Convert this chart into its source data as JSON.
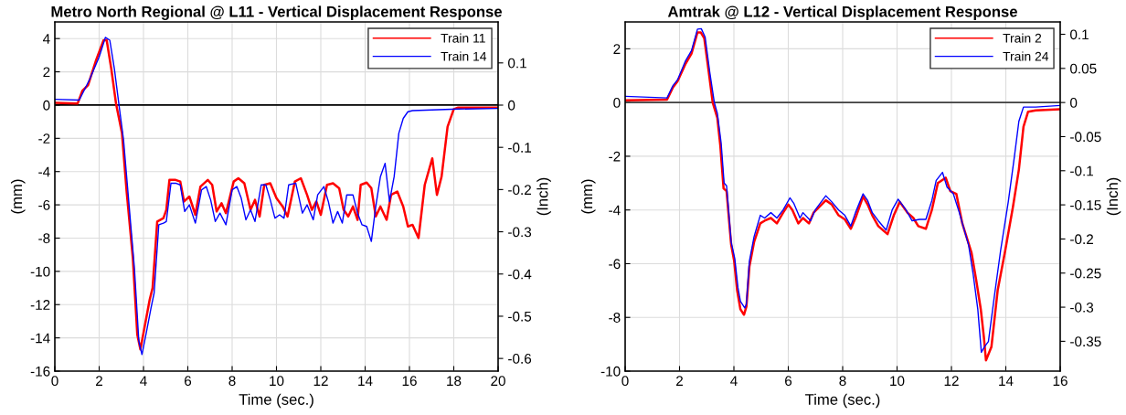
{
  "chart_data": [
    {
      "type": "line",
      "title": "Metro North Regional @ L11 - Vertical Displacement Response",
      "xlabel": "Time (sec.)",
      "ylabel": "(mm)",
      "y2label": "(Inch)",
      "xlim": [
        0,
        20
      ],
      "xticks": [
        0,
        2,
        4,
        6,
        8,
        10,
        12,
        14,
        16,
        18,
        20
      ],
      "ylim": [
        -16,
        5
      ],
      "yticks": [
        -16,
        -14,
        -12,
        -10,
        -8,
        -6,
        -4,
        -2,
        0,
        2,
        4
      ],
      "y2lim": [
        -0.63,
        0.197
      ],
      "y2ticks": [
        -0.6,
        -0.5,
        -0.4,
        -0.3,
        -0.2,
        -0.1,
        0,
        0.1
      ],
      "grid": true,
      "legend": "top right",
      "ref_lines": [
        {
          "axis": "y",
          "value": 0,
          "label": null,
          "color": "#000000"
        }
      ],
      "series": [
        {
          "name": "Train 11",
          "color": "#ff0000",
          "x": [
            0,
            1.03,
            1.24,
            1.5,
            1.86,
            2.2,
            2.34,
            2.55,
            2.76,
            3.03,
            3.24,
            3.52,
            3.72,
            3.86,
            4.07,
            4.28,
            4.41,
            4.62,
            4.9,
            5.03,
            5.17,
            5.45,
            5.66,
            5.83,
            6.07,
            6.34,
            6.57,
            6.9,
            7.1,
            7.3,
            7.52,
            7.72,
            8.07,
            8.28,
            8.55,
            8.83,
            9.03,
            9.24,
            9.45,
            9.72,
            10.0,
            10.28,
            10.5,
            10.83,
            11.1,
            11.38,
            11.6,
            11.8,
            12.0,
            12.28,
            12.55,
            12.83,
            13.03,
            13.24,
            13.45,
            13.66,
            13.8,
            14.07,
            14.28,
            14.48,
            14.69,
            14.97,
            15.17,
            15.45,
            15.72,
            15.93,
            16.14,
            16.41,
            16.69,
            17.03,
            17.24,
            17.45,
            17.72,
            18.0,
            18.2,
            20
          ],
          "values": [
            0.13,
            0.1,
            0.85,
            1.2,
            2.7,
            3.9,
            3.9,
            2.15,
            0.1,
            -1.7,
            -5.2,
            -9.2,
            -13.8,
            -14.7,
            -13.2,
            -11.7,
            -11,
            -7,
            -6.8,
            -6.3,
            -4.5,
            -4.5,
            -4.6,
            -5.8,
            -5.5,
            -6.6,
            -4.9,
            -4.5,
            -4.8,
            -6.4,
            -5.9,
            -6.5,
            -4.6,
            -4.4,
            -4.7,
            -6.3,
            -5.7,
            -6.7,
            -4.8,
            -4.7,
            -5.6,
            -6.1,
            -6.7,
            -4.6,
            -4.4,
            -5.4,
            -6.3,
            -5.8,
            -6.6,
            -4.8,
            -4.7,
            -5,
            -6.3,
            -6.7,
            -6.1,
            -6.9,
            -4.8,
            -4.66,
            -5,
            -6.7,
            -6.1,
            -6.9,
            -5.4,
            -5.2,
            -6.1,
            -7.3,
            -7.2,
            -8.0,
            -4.8,
            -3.2,
            -5.4,
            -4.3,
            -1.3,
            -0.24,
            -0.15,
            -0.15
          ]
        },
        {
          "name": "Train 14",
          "color": "#0000ff",
          "x": [
            0,
            1.1,
            1.31,
            1.59,
            2.0,
            2.28,
            2.48,
            2.69,
            2.9,
            3.1,
            3.31,
            3.59,
            3.79,
            3.93,
            4.14,
            4.34,
            4.48,
            4.69,
            4.9,
            5.03,
            5.24,
            5.45,
            5.66,
            5.86,
            6.07,
            6.34,
            6.62,
            6.83,
            7.03,
            7.24,
            7.45,
            7.72,
            8.0,
            8.21,
            8.41,
            8.62,
            8.83,
            9.03,
            9.31,
            9.52,
            9.72,
            9.93,
            10.14,
            10.34,
            10.55,
            10.87,
            11.17,
            11.38,
            11.66,
            11.86,
            12.14,
            12.34,
            12.55,
            12.76,
            12.97,
            13.17,
            13.45,
            13.66,
            13.86,
            14.07,
            14.28,
            14.48,
            14.69,
            14.9,
            15.1,
            15.31,
            15.52,
            15.72,
            15.93,
            16.14,
            18.2,
            20
          ],
          "values": [
            0.35,
            0.3,
            0.85,
            1.6,
            2.9,
            4.07,
            3.9,
            2.15,
            -0.05,
            -2.1,
            -5.4,
            -9.8,
            -14.2,
            -15.0,
            -13.6,
            -12.2,
            -11.3,
            -7.2,
            -7.1,
            -7.0,
            -4.7,
            -4.7,
            -4.8,
            -6.4,
            -6.0,
            -7.1,
            -5.1,
            -4.9,
            -5.7,
            -7.0,
            -6.5,
            -7.2,
            -5.1,
            -4.9,
            -5.6,
            -6.9,
            -6.3,
            -7.0,
            -4.8,
            -4.8,
            -5.7,
            -6.8,
            -6.6,
            -6.8,
            -4.8,
            -4.7,
            -6.5,
            -6.0,
            -6.9,
            -5.4,
            -4.9,
            -5.8,
            -7.1,
            -6.4,
            -7.1,
            -5.4,
            -5.4,
            -6.5,
            -7.2,
            -7.3,
            -8.2,
            -6.1,
            -4.3,
            -3.5,
            -5.8,
            -4.3,
            -1.7,
            -0.8,
            -0.4,
            -0.33,
            -0.24,
            -0.2
          ]
        }
      ]
    },
    {
      "type": "line",
      "title": "Amtrak @ L12 - Vertical Displacement Response",
      "xlabel": "Time (sec.)",
      "ylabel": "(mm)",
      "y2label": "(Inch)",
      "xlim": [
        0,
        16
      ],
      "xticks": [
        0,
        2,
        4,
        6,
        8,
        10,
        12,
        14,
        16
      ],
      "ylim": [
        -10,
        3
      ],
      "yticks": [
        -10,
        -8,
        -6,
        -4,
        -2,
        0,
        2
      ],
      "y2lim": [
        -0.3937,
        0.1181
      ],
      "y2ticks": [
        -0.35,
        -0.3,
        -0.25,
        -0.2,
        -0.15,
        -0.1,
        -0.05,
        0,
        0.05,
        0.1
      ],
      "grid": true,
      "legend": "top right",
      "ref_lines": [
        {
          "axis": "y",
          "value": 0,
          "label": null,
          "color": "#404040"
        }
      ],
      "series": [
        {
          "name": "Train 2",
          "color": "#ff0000",
          "x": [
            0,
            1.54,
            1.76,
            1.93,
            2.21,
            2.44,
            2.66,
            2.78,
            2.91,
            3.06,
            3.22,
            3.39,
            3.5,
            3.62,
            3.73,
            3.9,
            4.01,
            4.12,
            4.24,
            4.37,
            4.46,
            4.57,
            4.74,
            4.97,
            5.13,
            5.36,
            5.58,
            5.81,
            6.0,
            6.15,
            6.37,
            6.54,
            6.76,
            6.93,
            7.38,
            7.6,
            7.85,
            8.08,
            8.3,
            8.47,
            8.75,
            8.92,
            9.09,
            9.31,
            9.65,
            9.88,
            10.1,
            10.38,
            10.6,
            10.78,
            11.06,
            11.28,
            11.5,
            11.79,
            11.96,
            12.18,
            12.4,
            12.74,
            12.91,
            13.08,
            13.19,
            13.27,
            13.47,
            13.7,
            13.98,
            14.26,
            14.48,
            14.65,
            14.82,
            15.1,
            16
          ],
          "values": [
            0.08,
            0.11,
            0.57,
            0.8,
            1.42,
            1.82,
            2.61,
            2.61,
            2.39,
            1.25,
            0,
            -0.57,
            -1.6,
            -3.2,
            -3.3,
            -5.3,
            -5.9,
            -7.0,
            -7.7,
            -7.9,
            -7.6,
            -6.1,
            -5.2,
            -4.5,
            -4.4,
            -4.3,
            -4.5,
            -4.1,
            -3.8,
            -4.0,
            -4.5,
            -4.3,
            -4.5,
            -4.1,
            -3.64,
            -3.8,
            -4.2,
            -4.35,
            -4.7,
            -4.3,
            -3.5,
            -3.8,
            -4.2,
            -4.6,
            -4.9,
            -4.2,
            -3.7,
            -4.1,
            -4.3,
            -4.6,
            -4.7,
            -4.0,
            -3.0,
            -2.8,
            -3.3,
            -3.4,
            -4.5,
            -5.6,
            -6.6,
            -7.7,
            -8.7,
            -9.6,
            -9.1,
            -7.0,
            -5.5,
            -3.9,
            -2.5,
            -0.9,
            -0.34,
            -0.29,
            -0.25
          ]
        },
        {
          "name": "Train 24",
          "color": "#0000ff",
          "x": [
            0,
            1.54,
            1.76,
            1.93,
            2.21,
            2.44,
            2.66,
            2.8,
            2.94,
            3.11,
            3.28,
            3.39,
            3.53,
            3.64,
            3.73,
            3.9,
            4.03,
            4.15,
            4.24,
            4.4,
            4.46,
            4.57,
            4.74,
            4.97,
            5.13,
            5.36,
            5.58,
            5.81,
            6.06,
            6.2,
            6.43,
            6.54,
            6.82,
            6.99,
            7.38,
            7.6,
            7.85,
            8.08,
            8.3,
            8.47,
            8.75,
            8.92,
            9.09,
            9.31,
            9.6,
            9.82,
            10.04,
            10.33,
            10.55,
            10.83,
            11.06,
            11.28,
            11.44,
            11.67,
            11.84,
            12.07,
            12.29,
            12.63,
            12.8,
            12.97,
            13.1,
            13.21,
            13.36,
            13.58,
            13.81,
            14.09,
            14.31,
            14.48,
            14.65,
            15.1,
            16
          ],
          "values": [
            0.23,
            0.17,
            0.63,
            0.85,
            1.53,
            1.93,
            2.73,
            2.75,
            2.44,
            1.14,
            0,
            -0.4,
            -1.5,
            -3.0,
            -3.1,
            -5.2,
            -5.8,
            -6.9,
            -7.4,
            -7.65,
            -7.5,
            -5.9,
            -5.0,
            -4.2,
            -4.3,
            -4.1,
            -4.3,
            -4.0,
            -3.55,
            -3.75,
            -4.3,
            -4.1,
            -4.4,
            -4.0,
            -3.47,
            -3.7,
            -4.0,
            -4.2,
            -4.6,
            -4.1,
            -3.4,
            -3.65,
            -4.1,
            -4.4,
            -4.75,
            -4.0,
            -3.6,
            -4.0,
            -4.4,
            -4.35,
            -4.35,
            -3.65,
            -2.9,
            -2.6,
            -3.15,
            -3.4,
            -4.1,
            -5.3,
            -6.4,
            -7.7,
            -9.3,
            -9.1,
            -8.9,
            -7.2,
            -5.5,
            -3.7,
            -2.06,
            -0.7,
            -0.17,
            -0.17,
            -0.11
          ]
        }
      ]
    }
  ]
}
